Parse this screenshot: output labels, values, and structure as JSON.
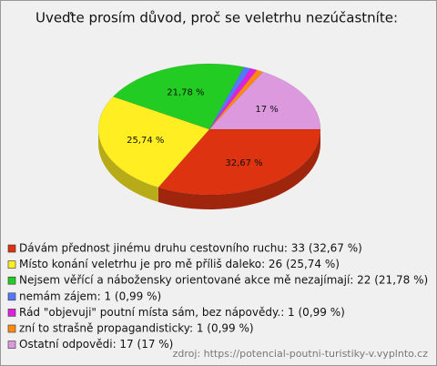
{
  "chart_data": {
    "type": "pie",
    "title": "Uveďte prosím důvod, proč se veletrhu nezúčastníte:",
    "categories": [
      "Dávám přednost jinému druhu cestovního ruchu: 33 (32,67 %)",
      "Místo konání veletrhu je pro mě příliš daleko: 26 (25,74 %)",
      "Nejsem věřící a nábožensky orientované akce mě nezajímají: 22 (21,78 %)",
      "nemám zájem: 1 (0,99 %)",
      "Rád \"objevuji\" poutní místa sám, bez nápovědy.: 1 (0,99 %)",
      "zní to strašně propagandisticky: 1 (0,99 %)",
      "Ostatní odpovědi: 17 (17 %)"
    ],
    "values": [
      32.67,
      25.74,
      21.78,
      0.99,
      0.99,
      0.99,
      17
    ],
    "value_labels": [
      "32,67 %",
      "25,74 %",
      "21,78 %",
      null,
      null,
      null,
      "17 %"
    ],
    "colors": [
      "#dd3311",
      "#ffee22",
      "#22cc22",
      "#5577ff",
      "#dd22dd",
      "#ff8811",
      "#dd99dd"
    ],
    "source": "zdroj: https://potencial-poutni-turistiky-v.vyplnto.cz"
  }
}
